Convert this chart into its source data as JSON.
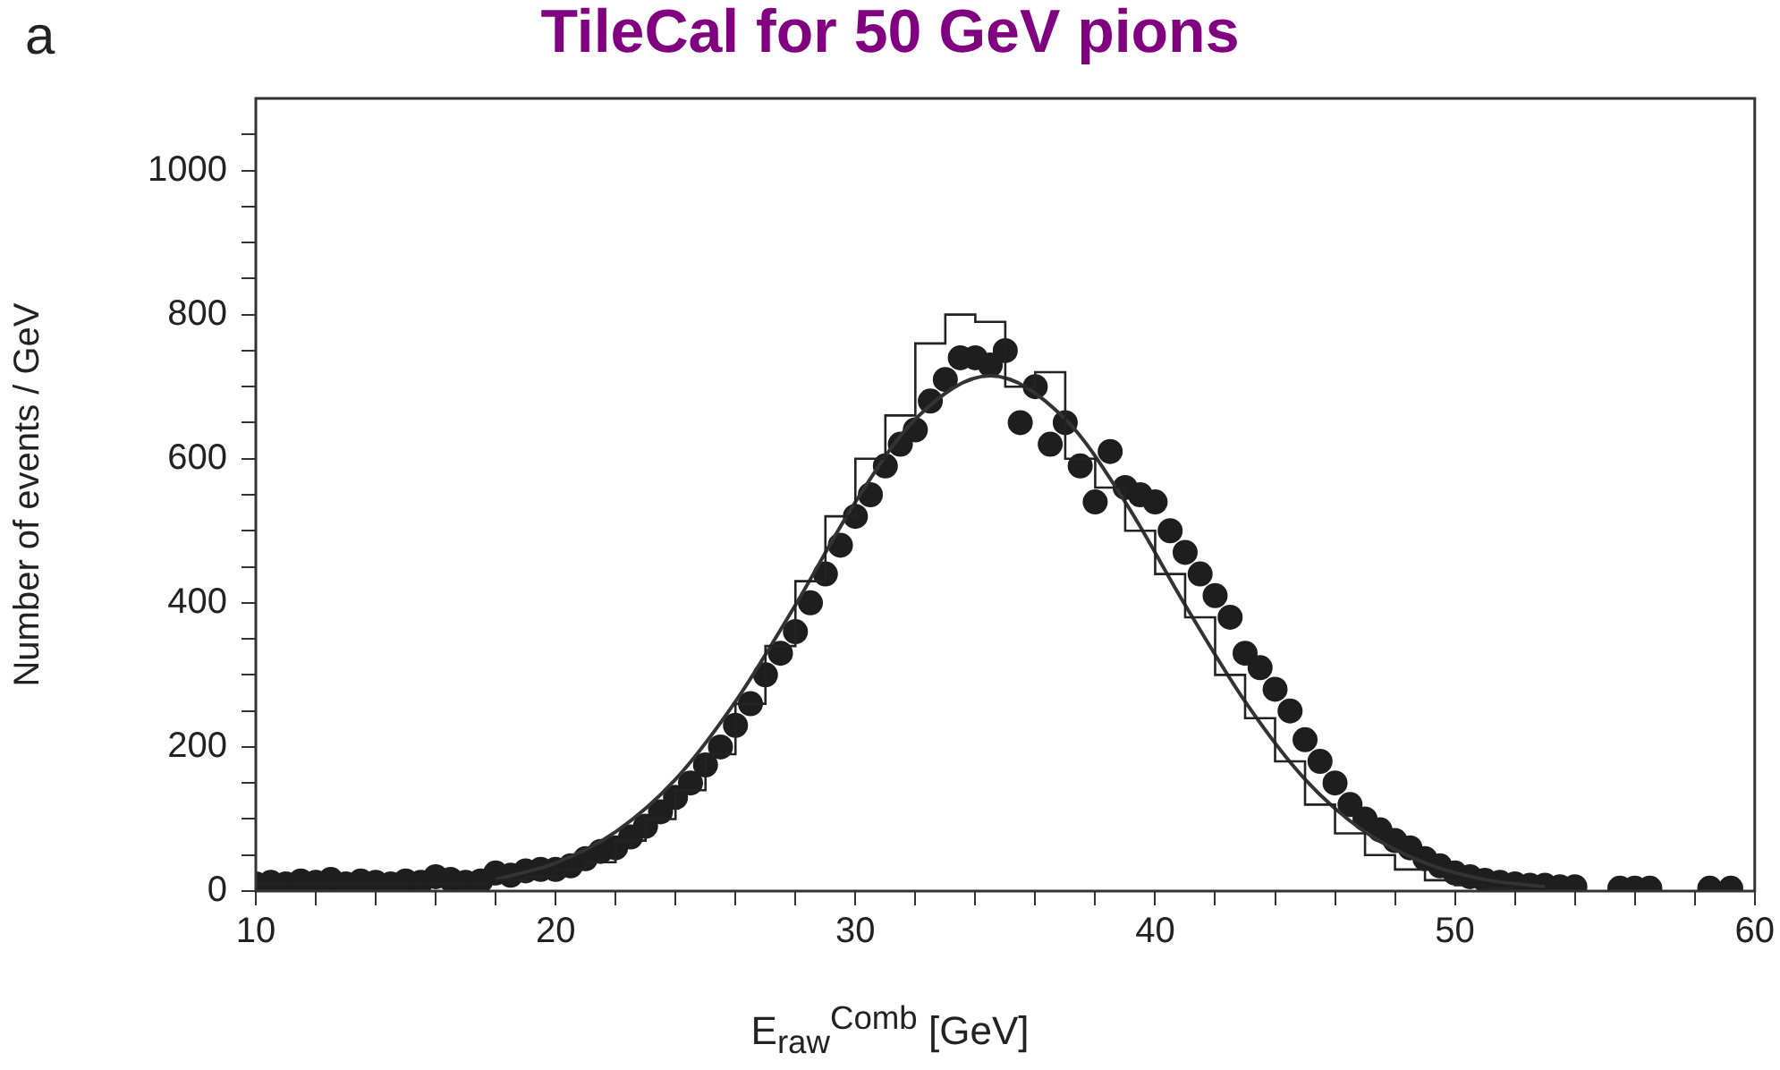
{
  "chart_data": {
    "type": "scatter",
    "title": "TileCal for 50 GeV pions",
    "xlabel": "E$_{raw}$$^{Comb}$ [GeV]",
    "ylabel": "Number of events / GeV",
    "annotations": [
      "a"
    ],
    "xlim": [
      10,
      60
    ],
    "xticks": [
      10,
      {
        "value": 12,
        "label": null
      },
      {
        "value": 14,
        "label": null
      },
      {
        "value": 16,
        "label": null
      },
      {
        "value": 18,
        "label": null
      },
      20,
      {
        "value": 22,
        "label": null
      },
      {
        "value": 24,
        "label": null
      },
      {
        "value": 26,
        "label": null
      },
      {
        "value": 28,
        "label": null
      },
      30,
      {
        "value": 32,
        "label": null
      },
      {
        "value": 34,
        "label": null
      },
      {
        "value": 36,
        "label": null
      },
      {
        "value": 38,
        "label": null
      },
      40,
      {
        "value": 42,
        "label": null
      },
      {
        "value": 44,
        "label": null
      },
      {
        "value": 46,
        "label": null
      },
      {
        "value": 48,
        "label": null
      },
      50,
      {
        "value": 52,
        "label": null
      },
      {
        "value": 54,
        "label": null
      },
      {
        "value": 56,
        "label": null
      },
      {
        "value": 58,
        "label": null
      },
      60
    ],
    "ylim": [
      0,
      1100
    ],
    "yticks": [
      0,
      {
        "value": 50,
        "label": null
      },
      {
        "value": 100,
        "label": null
      },
      {
        "value": 150,
        "label": null
      },
      200,
      {
        "value": 250,
        "label": null
      },
      {
        "value": 300,
        "label": null
      },
      {
        "value": 350,
        "label": null
      },
      400,
      {
        "value": 450,
        "label": null
      },
      {
        "value": 500,
        "label": null
      },
      {
        "value": 550,
        "label": null
      },
      600,
      {
        "value": 650,
        "label": null
      },
      {
        "value": 700,
        "label": null
      },
      {
        "value": 750,
        "label": null
      },
      800,
      {
        "value": 850,
        "label": null
      },
      {
        "value": 900,
        "label": null
      },
      {
        "value": 950,
        "label": null
      },
      1000,
      {
        "value": 1050,
        "label": null
      }
    ],
    "series": [
      {
        "type": "step",
        "color": "#222222",
        "x": [
          10,
          11,
          12,
          13,
          14,
          15,
          16,
          17,
          18,
          19,
          20,
          21,
          22,
          23,
          24,
          25,
          26,
          27,
          28,
          29,
          30,
          31,
          32,
          33,
          34,
          35,
          36,
          37,
          38,
          39,
          40,
          41,
          42,
          43,
          44,
          45,
          46,
          47,
          48,
          49,
          50,
          51,
          52,
          53,
          54
        ],
        "values": [
          10,
          10,
          10,
          10,
          10,
          10,
          10,
          10,
          10,
          15,
          20,
          30,
          40,
          70,
          100,
          140,
          190,
          260,
          340,
          430,
          520,
          600,
          660,
          760,
          800,
          790,
          700,
          720,
          600,
          560,
          500,
          440,
          380,
          300,
          240,
          180,
          120,
          80,
          50,
          30,
          15,
          8,
          4,
          0,
          0
        ]
      },
      {
        "type": "line",
        "color": "#333333",
        "x": [
          18,
          20,
          22,
          24,
          26,
          28,
          30,
          32,
          34.5,
          37,
          39,
          41,
          43,
          45,
          47,
          49,
          51,
          53
        ],
        "values": [
          16,
          39,
          82,
          155,
          263,
          397,
          540,
          655,
          715,
          655,
          540,
          397,
          263,
          155,
          82,
          39,
          16,
          6
        ]
      },
      {
        "type": "scatter",
        "marker": "circle",
        "color": "#1e1e1e",
        "x": [
          10,
          10.5,
          11,
          11.5,
          12,
          12.5,
          13,
          13.5,
          14,
          14.5,
          15,
          15.5,
          16,
          16.5,
          17,
          17.5,
          18,
          18.5,
          19,
          19.5,
          20,
          20.5,
          21,
          21.5,
          22,
          22.5,
          23,
          23.5,
          24,
          24.5,
          25,
          25.5,
          26,
          26.5,
          27,
          27.5,
          28,
          28.5,
          29,
          29.5,
          30,
          30.5,
          31,
          31.5,
          32,
          32.5,
          33,
          33.5,
          34,
          34.5,
          35,
          35.5,
          36,
          36.5,
          37,
          37.5,
          38,
          38.5,
          39,
          39.5,
          40,
          40.5,
          41,
          41.5,
          42,
          42.5,
          43,
          43.5,
          44,
          44.5,
          45,
          45.5,
          46,
          46.5,
          47,
          47.5,
          48,
          48.5,
          49,
          49.5,
          50,
          50.5,
          51,
          51.5,
          52,
          52.5,
          53,
          53.5,
          54,
          55.5,
          56,
          56.5,
          58.5,
          59.2
        ],
        "values": [
          10,
          12,
          10,
          14,
          12,
          16,
          10,
          14,
          12,
          10,
          14,
          12,
          20,
          16,
          12,
          14,
          25,
          22,
          28,
          30,
          30,
          35,
          45,
          55,
          60,
          75,
          90,
          110,
          130,
          150,
          175,
          200,
          230,
          260,
          300,
          330,
          360,
          400,
          440,
          480,
          520,
          550,
          590,
          620,
          640,
          680,
          710,
          740,
          740,
          730,
          750,
          650,
          700,
          620,
          650,
          590,
          540,
          610,
          560,
          550,
          540,
          500,
          470,
          440,
          410,
          380,
          330,
          310,
          280,
          250,
          210,
          180,
          150,
          120,
          100,
          85,
          70,
          60,
          45,
          35,
          25,
          20,
          15,
          12,
          10,
          8,
          8,
          6,
          6,
          4,
          4,
          4,
          4,
          4
        ]
      }
    ]
  }
}
